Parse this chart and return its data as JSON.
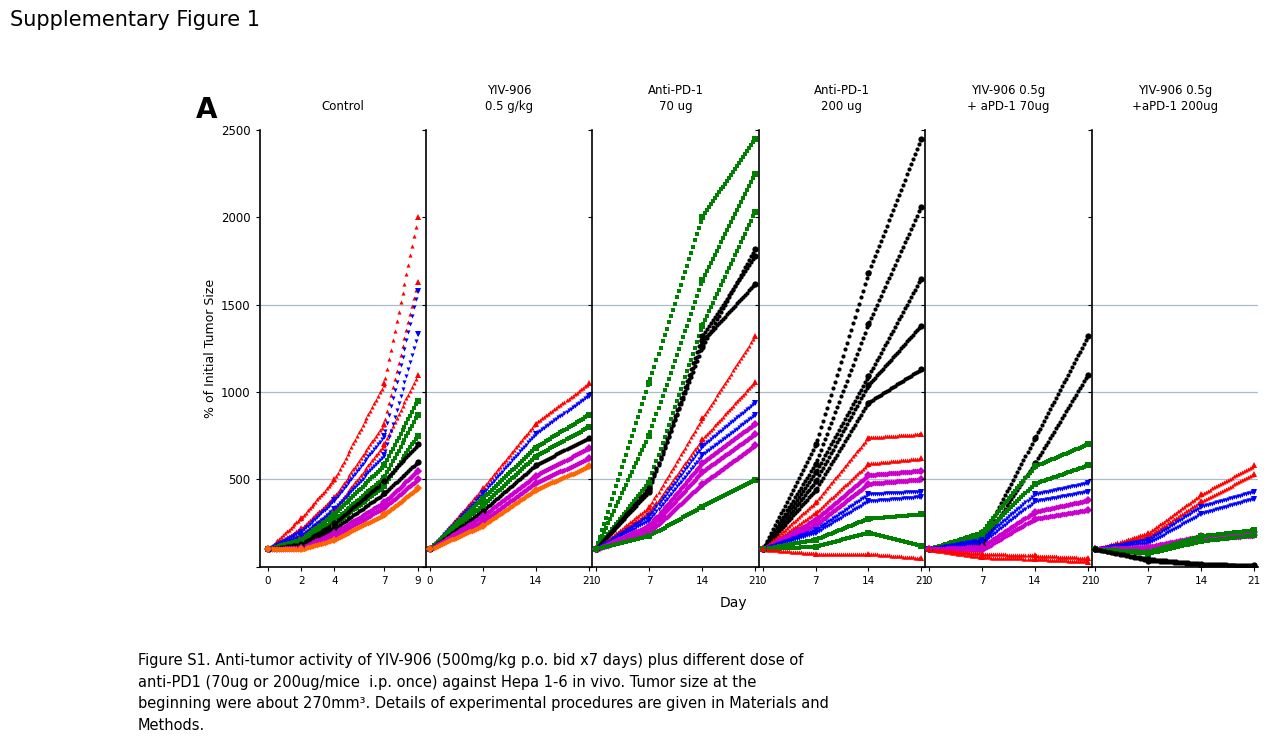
{
  "title": "Supplementary Figure 1",
  "panel_label": "A",
  "ylabel": "% of Initial Tumor Size",
  "xlabel": "Day",
  "ylim": [
    0,
    2500
  ],
  "yticks": [
    0,
    500,
    1000,
    1500,
    2000,
    2500
  ],
  "hlines": [
    500,
    1000,
    1500
  ],
  "hline_color": "#aabbcc",
  "group_labels": [
    "Control",
    "YIV-906\n0.5 g/kg",
    "Anti-PD-1\n70 ug",
    "Anti-PD-1\n200 ug",
    "YIV-906 0.5g\n+ aPD-1 70ug",
    "YIV-906 0.5g\n+aPD-1 200ug"
  ],
  "background_color": "#ffffff",
  "caption": "Figure S1. Anti-tumor activity of YIV-906 (500mg/kg p.o. bid x7 days) plus different dose of\nanti-PD1 (70ug or 200ug/mice  i.p. once) against Hepa 1-6 in vivo. Tumor size at the\nbeginning were about 270mm³. Details of experimental procedures are given in Materials and\nMethods.",
  "groups": {
    "control": {
      "days": [
        0,
        2,
        4,
        7,
        9
      ],
      "mice": [
        {
          "color": "#ff0000",
          "marker": "^",
          "values": [
            100,
            280,
            500,
            1050,
            2000
          ]
        },
        {
          "color": "#ff0000",
          "marker": "^",
          "values": [
            100,
            220,
            400,
            820,
            1630
          ]
        },
        {
          "color": "#ff0000",
          "marker": "^",
          "values": [
            100,
            180,
            330,
            700,
            1100
          ]
        },
        {
          "color": "#0000ff",
          "marker": "v",
          "values": [
            100,
            200,
            380,
            750,
            1580
          ]
        },
        {
          "color": "#0000ff",
          "marker": "v",
          "values": [
            100,
            175,
            330,
            640,
            1330
          ]
        },
        {
          "color": "#008000",
          "marker": "s",
          "values": [
            100,
            155,
            300,
            580,
            950
          ]
        },
        {
          "color": "#008000",
          "marker": "s",
          "values": [
            100,
            135,
            265,
            510,
            870
          ]
        },
        {
          "color": "#008000",
          "marker": "s",
          "values": [
            100,
            120,
            240,
            460,
            750
          ]
        },
        {
          "color": "#000000",
          "marker": "o",
          "values": [
            100,
            130,
            250,
            490,
            700
          ]
        },
        {
          "color": "#000000",
          "marker": "o",
          "values": [
            100,
            120,
            220,
            420,
            600
          ]
        },
        {
          "color": "#cc00cc",
          "marker": "D",
          "values": [
            100,
            110,
            195,
            370,
            550
          ]
        },
        {
          "color": "#cc00cc",
          "marker": "D",
          "values": [
            100,
            105,
            175,
            340,
            500
          ]
        },
        {
          "color": "#ff6600",
          "marker": "D",
          "values": [
            100,
            100,
            155,
            300,
            450
          ]
        }
      ]
    },
    "yiv906": {
      "days": [
        0,
        7,
        14,
        21
      ],
      "mice": [
        {
          "color": "#ff0000",
          "marker": "^",
          "values": [
            100,
            450,
            820,
            1050
          ]
        },
        {
          "color": "#0000ff",
          "marker": "v",
          "values": [
            100,
            420,
            760,
            980
          ]
        },
        {
          "color": "#008000",
          "marker": "s",
          "values": [
            100,
            390,
            680,
            870
          ]
        },
        {
          "color": "#008000",
          "marker": "s",
          "values": [
            100,
            350,
            630,
            800
          ]
        },
        {
          "color": "#000000",
          "marker": "o",
          "values": [
            100,
            320,
            580,
            740
          ]
        },
        {
          "color": "#cc00cc",
          "marker": "D",
          "values": [
            100,
            290,
            520,
            680
          ]
        },
        {
          "color": "#cc00cc",
          "marker": "D",
          "values": [
            100,
            260,
            480,
            620
          ]
        },
        {
          "color": "#ff6600",
          "marker": "D",
          "values": [
            100,
            235,
            440,
            575
          ]
        }
      ]
    },
    "antipd1_70": {
      "days": [
        0,
        7,
        14,
        21
      ],
      "mice": [
        {
          "color": "#008000",
          "marker": "s",
          "values": [
            100,
            1050,
            2000,
            2450
          ]
        },
        {
          "color": "#008000",
          "marker": "s",
          "values": [
            100,
            750,
            1640,
            2250
          ]
        },
        {
          "color": "#008000",
          "marker": "s",
          "values": [
            100,
            480,
            1380,
            2030
          ]
        },
        {
          "color": "#000000",
          "marker": "o",
          "values": [
            100,
            450,
            1260,
            1820
          ]
        },
        {
          "color": "#000000",
          "marker": "o",
          "values": [
            100,
            440,
            1320,
            1780
          ]
        },
        {
          "color": "#000000",
          "marker": "o",
          "values": [
            100,
            430,
            1290,
            1620
          ]
        },
        {
          "color": "#ff0000",
          "marker": "^",
          "values": [
            100,
            340,
            850,
            1320
          ]
        },
        {
          "color": "#ff0000",
          "marker": "^",
          "values": [
            100,
            310,
            730,
            1060
          ]
        },
        {
          "color": "#0000ff",
          "marker": "v",
          "values": [
            100,
            290,
            690,
            940
          ]
        },
        {
          "color": "#0000ff",
          "marker": "v",
          "values": [
            100,
            265,
            640,
            870
          ]
        },
        {
          "color": "#cc00cc",
          "marker": "D",
          "values": [
            100,
            235,
            595,
            820
          ]
        },
        {
          "color": "#cc00cc",
          "marker": "D",
          "values": [
            100,
            215,
            545,
            760
          ]
        },
        {
          "color": "#cc00cc",
          "marker": "D",
          "values": [
            100,
            195,
            475,
            695
          ]
        },
        {
          "color": "#008000",
          "marker": "s",
          "values": [
            100,
            175,
            345,
            495
          ]
        }
      ]
    },
    "antipd1_200": {
      "days": [
        0,
        7,
        14,
        21
      ],
      "mice": [
        {
          "color": "#000000",
          "marker": "o",
          "values": [
            100,
            700,
            1680,
            2450
          ]
        },
        {
          "color": "#000000",
          "marker": "o",
          "values": [
            100,
            590,
            1390,
            2060
          ]
        },
        {
          "color": "#000000",
          "marker": "o",
          "values": [
            100,
            540,
            1090,
            1650
          ]
        },
        {
          "color": "#000000",
          "marker": "o",
          "values": [
            100,
            490,
            1040,
            1380
          ]
        },
        {
          "color": "#000000",
          "marker": "o",
          "values": [
            100,
            440,
            940,
            1130
          ]
        },
        {
          "color": "#ff0000",
          "marker": "^",
          "values": [
            100,
            370,
            740,
            760
          ]
        },
        {
          "color": "#ff0000",
          "marker": "^",
          "values": [
            100,
            310,
            590,
            620
          ]
        },
        {
          "color": "#cc00cc",
          "marker": "D",
          "values": [
            100,
            270,
            525,
            550
          ]
        },
        {
          "color": "#cc00cc",
          "marker": "D",
          "values": [
            100,
            240,
            475,
            500
          ]
        },
        {
          "color": "#0000ff",
          "marker": "v",
          "values": [
            100,
            210,
            415,
            430
          ]
        },
        {
          "color": "#0000ff",
          "marker": "v",
          "values": [
            100,
            195,
            375,
            400
          ]
        },
        {
          "color": "#008000",
          "marker": "s",
          "values": [
            100,
            155,
            275,
            300
          ]
        },
        {
          "color": "#008000",
          "marker": "s",
          "values": [
            100,
            115,
            195,
            120
          ]
        },
        {
          "color": "#ff0000",
          "marker": "^",
          "values": [
            100,
            75,
            75,
            50
          ]
        }
      ]
    },
    "combo_70": {
      "days": [
        0,
        7,
        14,
        21
      ],
      "mice": [
        {
          "color": "#000000",
          "marker": "o",
          "values": [
            100,
            145,
            740,
            1320
          ]
        },
        {
          "color": "#000000",
          "marker": "o",
          "values": [
            100,
            125,
            595,
            1100
          ]
        },
        {
          "color": "#008000",
          "marker": "s",
          "values": [
            100,
            195,
            575,
            700
          ]
        },
        {
          "color": "#008000",
          "marker": "s",
          "values": [
            100,
            175,
            475,
            580
          ]
        },
        {
          "color": "#0000ff",
          "marker": "v",
          "values": [
            100,
            155,
            415,
            480
          ]
        },
        {
          "color": "#0000ff",
          "marker": "v",
          "values": [
            100,
            135,
            375,
            430
          ]
        },
        {
          "color": "#cc00cc",
          "marker": "D",
          "values": [
            100,
            115,
            315,
            380
          ]
        },
        {
          "color": "#cc00cc",
          "marker": "D",
          "values": [
            100,
            95,
            275,
            325
          ]
        },
        {
          "color": "#ff0000",
          "marker": "^",
          "values": [
            100,
            75,
            65,
            50
          ]
        },
        {
          "color": "#ff0000",
          "marker": "^",
          "values": [
            100,
            55,
            45,
            30
          ]
        }
      ]
    },
    "combo_200": {
      "days": [
        0,
        7,
        14,
        21
      ],
      "mice": [
        {
          "color": "#ff0000",
          "marker": "^",
          "values": [
            100,
            195,
            415,
            580
          ]
        },
        {
          "color": "#ff0000",
          "marker": "^",
          "values": [
            100,
            175,
            375,
            530
          ]
        },
        {
          "color": "#0000ff",
          "marker": "v",
          "values": [
            100,
            155,
            345,
            430
          ]
        },
        {
          "color": "#0000ff",
          "marker": "v",
          "values": [
            100,
            135,
            305,
            390
          ]
        },
        {
          "color": "#cc00cc",
          "marker": "D",
          "values": [
            100,
            115,
            175,
            200
          ]
        },
        {
          "color": "#cc00cc",
          "marker": "D",
          "values": [
            100,
            95,
            155,
            180
          ]
        },
        {
          "color": "#008000",
          "marker": "s",
          "values": [
            100,
            85,
            175,
            210
          ]
        },
        {
          "color": "#008000",
          "marker": "s",
          "values": [
            100,
            75,
            145,
            180
          ]
        },
        {
          "color": "#000000",
          "marker": "o",
          "values": [
            100,
            45,
            18,
            8
          ]
        },
        {
          "color": "#000000",
          "marker": "o",
          "values": [
            100,
            35,
            12,
            5
          ]
        }
      ]
    }
  }
}
